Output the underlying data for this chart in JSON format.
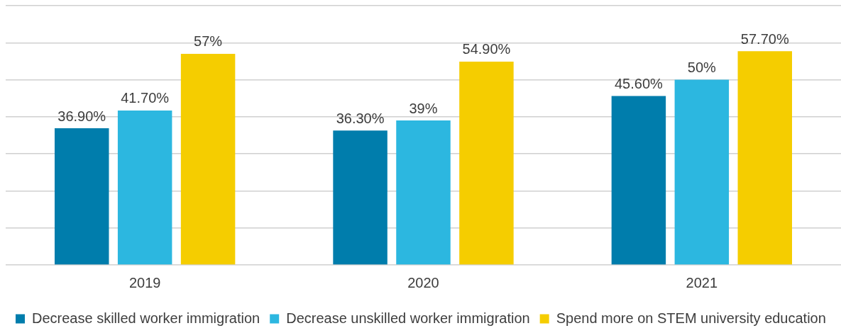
{
  "chart_data": {
    "type": "bar",
    "categories": [
      "2019",
      "2020",
      "2021"
    ],
    "series": [
      {
        "name": "Decrease skilled worker immigration",
        "color": "#007dac",
        "values": [
          36.9,
          36.3,
          45.6
        ],
        "value_labels": [
          "36.90%",
          "36.30%",
          "45.60%"
        ]
      },
      {
        "name": "Decrease unskilled worker immigration",
        "color": "#2cb7e0",
        "values": [
          41.7,
          39,
          50
        ],
        "value_labels": [
          "41.70%",
          "39%",
          "50%"
        ]
      },
      {
        "name": "Spend more on STEM university education",
        "color": "#f5cd00",
        "values": [
          57,
          54.9,
          57.7
        ],
        "value_labels": [
          "57%",
          "54.90%",
          "57.70%"
        ]
      }
    ],
    "ylim": [
      0,
      70
    ],
    "yticks": [
      {
        "value": 0,
        "label": null
      },
      {
        "value": 10,
        "label": null
      },
      {
        "value": 20,
        "label": null
      },
      {
        "value": 30,
        "label": null
      },
      {
        "value": 40,
        "label": null
      },
      {
        "value": 50,
        "label": null
      },
      {
        "value": 60,
        "label": null
      },
      {
        "value": 70,
        "label": null
      }
    ],
    "grid": "y",
    "legend": "bottom"
  }
}
